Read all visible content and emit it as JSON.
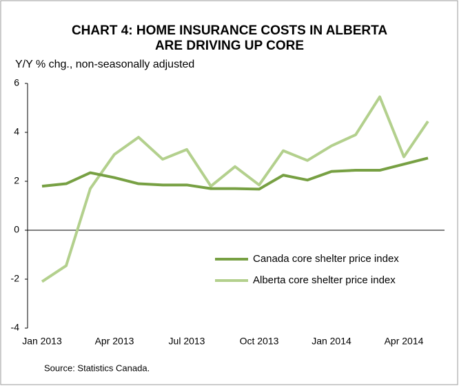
{
  "chart_data": {
    "type": "line",
    "title": "CHART 4: HOME INSURANCE COSTS IN ALBERTA ARE DRIVING UP CORE",
    "y_label": "Y/Y % chg., non-seasonally adjusted",
    "source": "Source: Statistics Canada.",
    "categories": [
      "Jan 2013",
      null,
      null,
      "Apr 2013",
      null,
      null,
      "Jul 2013",
      null,
      null,
      "Oct 2013",
      null,
      null,
      "Jan 2014",
      null,
      null,
      "Apr 2014",
      null
    ],
    "series": [
      {
        "name": "Canada core shelter price index",
        "color": "#77a043",
        "values": [
          1.8,
          1.9,
          2.35,
          2.15,
          1.9,
          1.85,
          1.85,
          1.7,
          1.7,
          1.68,
          2.25,
          2.05,
          2.4,
          2.45,
          2.45,
          2.7,
          2.95
        ]
      },
      {
        "name": "Alberta core shelter price index",
        "color": "#b3d08d",
        "values": [
          -2.1,
          -1.45,
          1.7,
          3.1,
          3.8,
          2.9,
          3.3,
          1.8,
          2.6,
          1.85,
          3.25,
          2.85,
          3.45,
          3.9,
          5.45,
          3.0,
          4.45
        ]
      }
    ],
    "ylim": [
      -4,
      6
    ],
    "yticks": [
      -4,
      -2,
      0,
      2,
      4,
      6
    ],
    "grid": false,
    "legend": "right"
  }
}
